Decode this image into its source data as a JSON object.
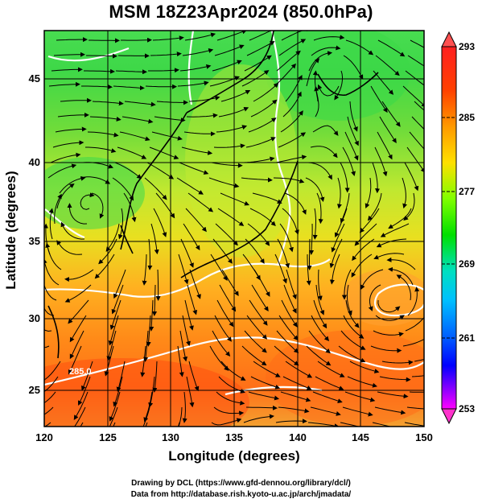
{
  "title": "MSM 18Z23Apr2024 (850.0hPa)",
  "xlabel": "Longitude (degrees)",
  "ylabel": "Latitude  (degrees)",
  "x_ticks": [
    "120",
    "125",
    "130",
    "135",
    "140",
    "145",
    "150"
  ],
  "y_ticks": [
    "25",
    "30",
    "35",
    "40",
    "45"
  ],
  "colorbar_ticks": [
    "293",
    "285",
    "277",
    "269",
    "261",
    "253"
  ],
  "contour_label": "285.0",
  "credit_line1": "Drawing by DCL (https://www.gfd-dennou.org/library/dcl/)",
  "credit_line2": "Data from http://database.rish.kyoto-u.ac.jp/arch/jmadata/",
  "map": {
    "lon_range": [
      120,
      150
    ],
    "lat_range": [
      22.5,
      47.5
    ],
    "field": "temperature (K) at 850 hPa with wind streamlines",
    "colorbar_range": [
      253,
      293
    ],
    "colorbar_colors": [
      "#ff00ff",
      "#8000ff",
      "#0000ff",
      "#0080ff",
      "#00c0ff",
      "#00e0c0",
      "#00e060",
      "#00e000",
      "#80ff00",
      "#e0ff00",
      "#ffe000",
      "#ff9900",
      "#ff4000",
      "#ff2020"
    ]
  }
}
